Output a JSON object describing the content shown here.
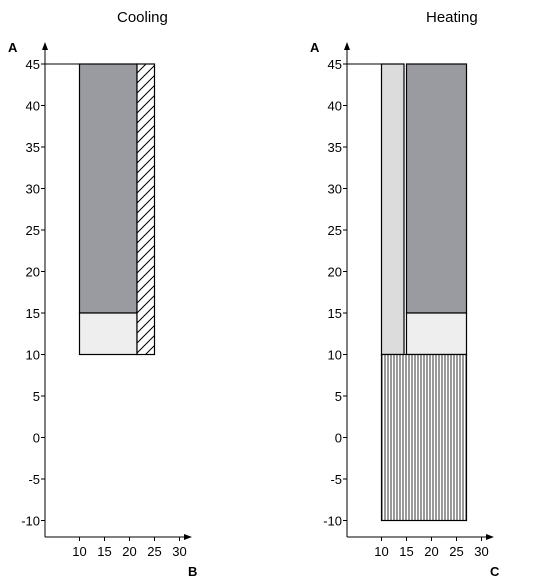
{
  "chart_data": [
    {
      "type": "area",
      "title": "Cooling",
      "ylabel": "A",
      "xlabel": "B",
      "x_ticks": [
        10,
        15,
        20,
        25,
        30
      ],
      "y_ticks": [
        45,
        40,
        35,
        30,
        25,
        20,
        15,
        10,
        5,
        0,
        -5,
        -10
      ],
      "xlim": [
        5,
        32
      ],
      "ylim": [
        -12,
        47
      ],
      "grid": false,
      "regions": [
        {
          "x": [
            10,
            21.5
          ],
          "y": [
            15,
            45
          ],
          "fill": "dark-gray"
        },
        {
          "x": [
            10,
            21.5
          ],
          "y": [
            10,
            15
          ],
          "fill": "light-gray"
        },
        {
          "x": [
            21.5,
            25
          ],
          "y": [
            10,
            45
          ],
          "fill": "diagonal-hatch"
        }
      ],
      "markers": [
        {
          "y": 45,
          "x_from": 5,
          "x_to": 10
        }
      ]
    },
    {
      "type": "area",
      "title": "Heating",
      "ylabel": "A",
      "xlabel": "C",
      "x_ticks": [
        10,
        15,
        20,
        25,
        30
      ],
      "y_ticks": [
        45,
        40,
        35,
        30,
        25,
        20,
        15,
        10,
        5,
        0,
        -5,
        -10
      ],
      "xlim": [
        5,
        32
      ],
      "ylim": [
        -12,
        47
      ],
      "grid": false,
      "regions": [
        {
          "x": [
            10,
            14.5
          ],
          "y": [
            10,
            45
          ],
          "fill": "light-gray"
        },
        {
          "x": [
            15,
            27
          ],
          "y": [
            15,
            45
          ],
          "fill": "dark-gray"
        },
        {
          "x": [
            15,
            27
          ],
          "y": [
            10,
            15
          ],
          "fill": "light-gray"
        },
        {
          "x": [
            10,
            27
          ],
          "y": [
            -10,
            10
          ],
          "fill": "vertical-hatch"
        }
      ],
      "markers": [
        {
          "y": 45,
          "x_from": 5,
          "x_to": 10
        }
      ]
    }
  ],
  "colors": {
    "dark-gray": "#9a9ba0",
    "light-gray": "#eeeeee",
    "mid-light-gray": "#dcdcdc",
    "stroke": "#000000"
  }
}
